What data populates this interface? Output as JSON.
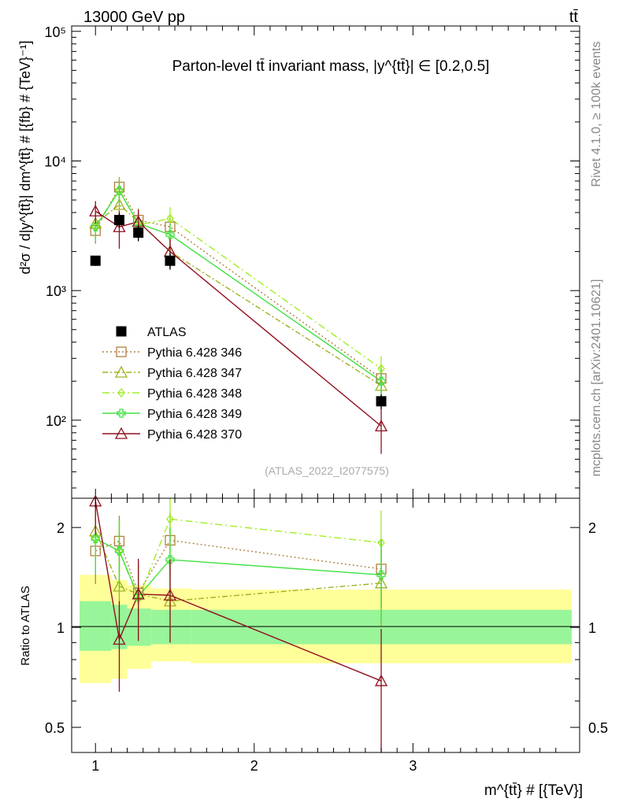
{
  "header": {
    "energy": "13000 GeV pp",
    "process": "tt̄",
    "side_top": "Rivet 4.1.0, ≥ 100k events",
    "side_bottom": "mcplots.cern.ch [arXiv:2401.10621]"
  },
  "colors": {
    "data": "#000000",
    "p346": "#b08040",
    "p347": "#a0b020",
    "p348": "#a0ee20",
    "p349": "#40e040",
    "p370": "#901020",
    "band_inner": "#99f599",
    "band_outer": "#ffff99"
  },
  "chart_data": [
    {
      "type": "line",
      "title": "Parton-level tt̄ invariant mass, |y^{tt̄}| ∈ [0.2,0.5]",
      "analysis": "(ATLAS_2022_I2077575)",
      "ylabel": "d²σ / d|y^{tt̄}| dm^{tt̄} # [{fb} # {TeV}⁻¹]",
      "xlabel": "m^{tt̄} # [{TeV}]",
      "yscale": "log",
      "xlim": [
        0.85,
        4.05
      ],
      "ylim": [
        25,
        110000
      ],
      "y_ticks": [
        "10²",
        "10³",
        "10⁴",
        "10⁵"
      ],
      "x": [
        1.0,
        1.15,
        1.27,
        1.47,
        2.8
      ],
      "data": {
        "name": "ATLAS",
        "values": [
          1700,
          3500,
          2800,
          1700,
          140
        ],
        "err_low": [
          150,
          450,
          400,
          250,
          18
        ],
        "err_high": [
          150,
          450,
          400,
          250,
          18
        ]
      },
      "series": [
        {
          "name": "Pythia 6.428 346",
          "key": "p346",
          "marker": "square",
          "dash": "dot",
          "values": [
            2900,
            6300,
            3500,
            3100,
            210
          ],
          "err_low": [
            600,
            1200,
            800,
            700,
            50
          ],
          "err_high": [
            600,
            1200,
            800,
            700,
            50
          ]
        },
        {
          "name": "Pythia 6.428 347",
          "key": "p347",
          "marker": "triangle",
          "dash": "dashdot",
          "values": [
            3300,
            4600,
            3400,
            2000,
            185
          ],
          "err_low": [
            700,
            1000,
            800,
            500,
            45
          ],
          "err_high": [
            700,
            1000,
            800,
            500,
            45
          ]
        },
        {
          "name": "Pythia 6.428 348",
          "key": "p348",
          "marker": "diamond",
          "dash": "dashdot2",
          "values": [
            3100,
            6000,
            3200,
            3600,
            250
          ],
          "err_low": [
            700,
            1300,
            800,
            800,
            60
          ],
          "err_high": [
            700,
            1300,
            800,
            800,
            60
          ]
        },
        {
          "name": "Pythia 6.428 349",
          "key": "p349",
          "marker": "plus",
          "dash": "solid",
          "values": [
            3100,
            5900,
            3300,
            2700,
            200
          ],
          "err_low": [
            700,
            1300,
            800,
            600,
            50
          ],
          "err_high": [
            700,
            1300,
            800,
            600,
            50
          ]
        },
        {
          "name": "Pythia 6.428 370",
          "key": "p370",
          "marker": "triangle",
          "dash": "solid",
          "values": [
            4100,
            3100,
            3400,
            2000,
            90
          ],
          "err_low": [
            800,
            1000,
            800,
            500,
            35
          ],
          "err_high": [
            800,
            1000,
            800,
            500,
            35
          ]
        }
      ]
    },
    {
      "type": "line",
      "ylabel": "Ratio to ATLAS",
      "yscale": "log",
      "ylim": [
        0.42,
        2.45
      ],
      "y_ticks": [
        "0.5",
        "1",
        "2"
      ],
      "x": [
        1.0,
        1.15,
        1.27,
        1.47,
        2.8
      ],
      "reference": 1,
      "band_edges": [
        0.9,
        1.1,
        1.2,
        1.35,
        1.6,
        4.0
      ],
      "band_inner": [
        [
          0.85,
          1.2
        ],
        [
          0.86,
          1.17
        ],
        [
          0.88,
          1.14
        ],
        [
          0.89,
          1.13
        ],
        [
          0.89,
          1.13
        ]
      ],
      "band_outer": [
        [
          0.68,
          1.44
        ],
        [
          0.7,
          1.39
        ],
        [
          0.75,
          1.34
        ],
        [
          0.79,
          1.31
        ],
        [
          0.78,
          1.3
        ]
      ],
      "series": [
        {
          "key": "p346",
          "marker": "square",
          "dash": "dot",
          "values": [
            1.7,
            1.82,
            1.27,
            1.83,
            1.5
          ],
          "err": [
            0.35,
            0.35,
            0.3,
            0.4,
            0.35
          ]
        },
        {
          "key": "p347",
          "marker": "triangle",
          "dash": "dashdot",
          "values": [
            1.95,
            1.33,
            1.26,
            1.2,
            1.36
          ],
          "err": [
            0.4,
            0.3,
            0.3,
            0.3,
            0.35
          ]
        },
        {
          "key": "p348",
          "marker": "diamond",
          "dash": "dashdot2",
          "values": [
            1.85,
            1.7,
            1.22,
            2.12,
            1.8
          ],
          "err": [
            0.4,
            0.4,
            0.3,
            0.45,
            0.45
          ]
        },
        {
          "key": "p349",
          "marker": "plus",
          "dash": "solid",
          "values": [
            1.85,
            1.7,
            1.24,
            1.6,
            1.44
          ],
          "err": [
            0.4,
            0.4,
            0.3,
            0.4,
            0.4
          ]
        },
        {
          "key": "p370",
          "marker": "triangle",
          "dash": "solid",
          "values": [
            2.4,
            0.92,
            1.26,
            1.25,
            0.69
          ],
          "err": [
            0.5,
            0.28,
            0.35,
            0.35,
            0.3
          ]
        }
      ]
    }
  ]
}
